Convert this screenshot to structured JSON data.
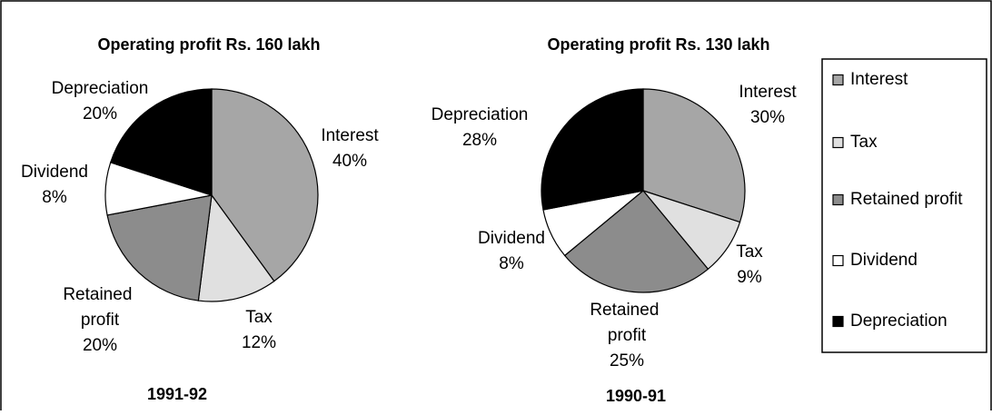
{
  "chart_data": [
    {
      "type": "pie",
      "title": "Operating profit Rs. 160 lakh",
      "caption": "1991-92",
      "categories": [
        "Interest",
        "Tax",
        "Retained profit",
        "Dividend",
        "Depreciation"
      ],
      "values": [
        40,
        12,
        20,
        8,
        20
      ],
      "value_labels": [
        "40%",
        "12%",
        "20%",
        "8%",
        "20%"
      ],
      "colors": [
        "#a6a6a6",
        "#e0e0e0",
        "#8c8c8c",
        "#ffffff",
        "#000000"
      ]
    },
    {
      "type": "pie",
      "title": "Operating profit Rs. 130 lakh",
      "caption": "1990-91",
      "categories": [
        "Interest",
        "Tax",
        "Retained profit",
        "Dividend",
        "Depreciation"
      ],
      "values": [
        30,
        9,
        25,
        8,
        28
      ],
      "value_labels": [
        "30%",
        "9%",
        "25%",
        "8%",
        "28%"
      ],
      "colors": [
        "#a6a6a6",
        "#e0e0e0",
        "#8c8c8c",
        "#ffffff",
        "#000000"
      ]
    }
  ]
}
